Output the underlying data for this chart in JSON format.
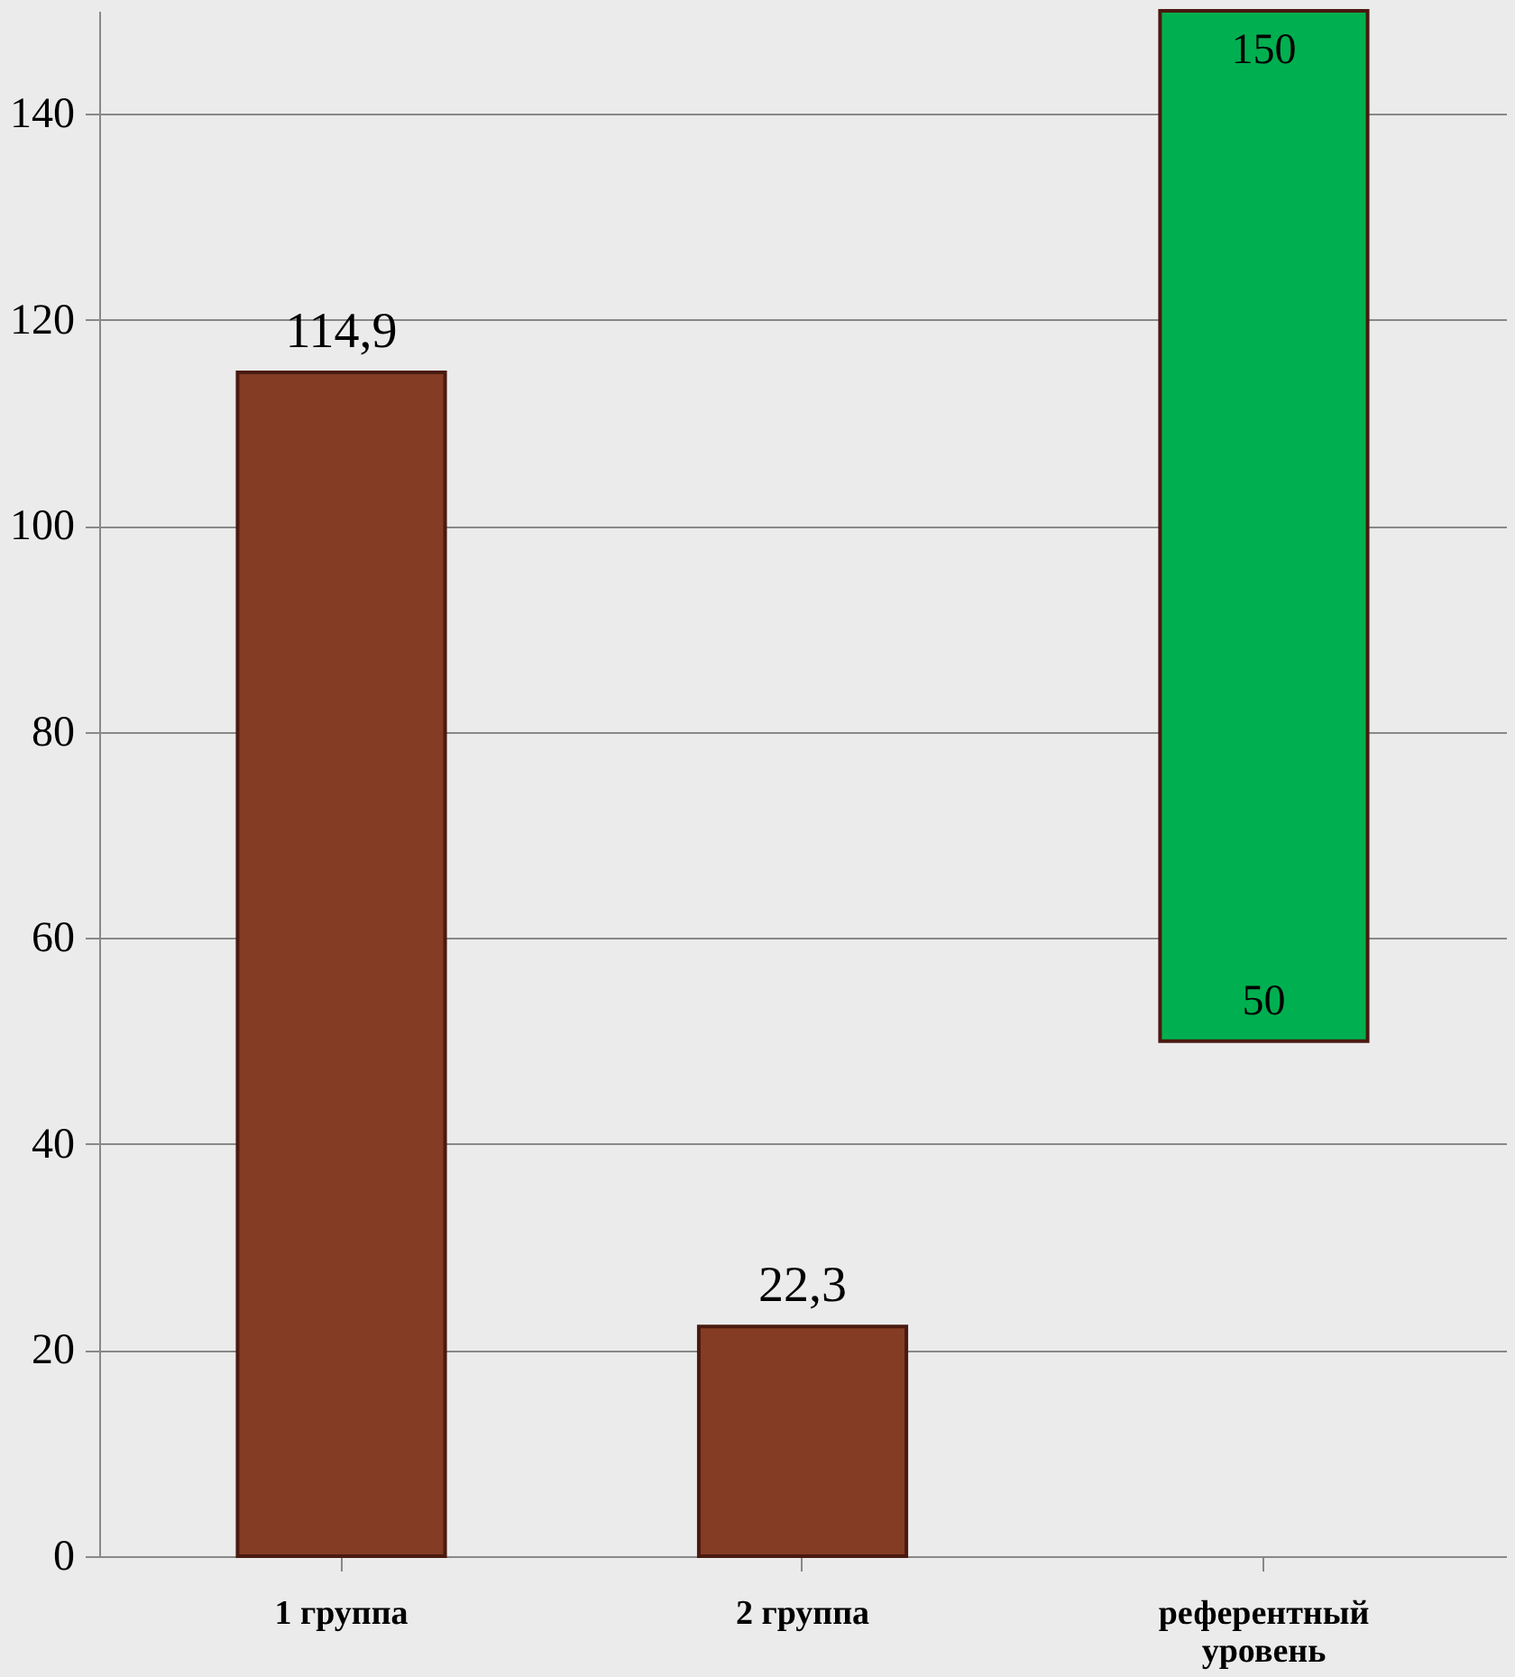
{
  "chart_data": {
    "type": "bar",
    "categories": [
      "1 группа",
      "2 группа",
      "референтный уровень"
    ],
    "values": [
      114.9,
      22.3,
      100
    ],
    "base": [
      null,
      null,
      50
    ],
    "colors": [
      "#843c24",
      "#843c24",
      "#00b050"
    ],
    "value_labels": [
      "114,9",
      "22,3",
      null
    ],
    "annotations": [
      {
        "text": "150",
        "x": "референтный уровень",
        "y": 150
      },
      {
        "text": "50",
        "x": "референтный уровень",
        "y": 50
      }
    ],
    "ylim": [
      0,
      150
    ],
    "yticks": [
      0,
      20,
      40,
      60,
      80,
      100,
      120,
      140
    ],
    "grid": "y"
  }
}
